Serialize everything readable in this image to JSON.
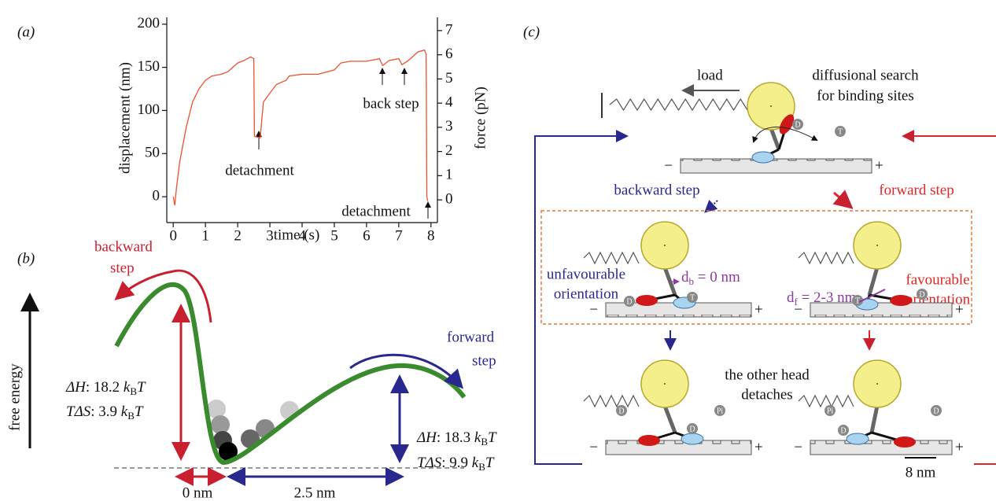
{
  "panel_labels": [
    "(a)",
    "(b)",
    "(c)"
  ],
  "chart_data": {
    "type": "line",
    "x": [
      0,
      0.05,
      0.1,
      0.2,
      0.4,
      0.6,
      0.8,
      1.0,
      1.2,
      1.5,
      1.7,
      2.0,
      2.2,
      2.4,
      2.5,
      2.52,
      2.7,
      2.75,
      2.8,
      3.0,
      3.2,
      3.5,
      3.6,
      4.0,
      4.5,
      5.0,
      5.2,
      5.5,
      6.0,
      6.4,
      6.5,
      6.7,
      7.0,
      7.1,
      7.3,
      7.6,
      7.8,
      7.85,
      7.87,
      7.9
    ],
    "values": [
      0,
      -10,
      10,
      40,
      80,
      110,
      125,
      135,
      140,
      142,
      145,
      155,
      158,
      162,
      160,
      70,
      68,
      90,
      110,
      120,
      130,
      135,
      140,
      142,
      142,
      147,
      155,
      157,
      157,
      160,
      152,
      158,
      160,
      153,
      158,
      168,
      170,
      165,
      0,
      -5
    ],
    "color": "#e8522f",
    "xlim": [
      -0.2,
      8.2
    ],
    "xticks": [
      0,
      1,
      2,
      3,
      4,
      5,
      6,
      7,
      8
    ],
    "ylim": [
      -30,
      208
    ],
    "yticks": [
      0,
      50,
      100,
      150,
      200
    ],
    "y2lim": [
      -0.94,
      7.55
    ],
    "y2ticks": [
      0,
      1,
      2,
      3,
      4,
      5,
      6,
      7
    ],
    "xlabel": "time (s)",
    "ylabel": "displacement (nm)",
    "y2label": "force (pN)",
    "annotations": [
      "detachment",
      "back step",
      "detachment"
    ]
  },
  "panel_b": {
    "backward_label": [
      "backward",
      "step"
    ],
    "forward_label": [
      "forward",
      "step"
    ],
    "axis_label": "free energy",
    "left_dh": {
      "text": "ΔH",
      "rest": ": 18.2 ",
      "k": "k",
      "sub": "B",
      "tail": "T"
    },
    "left_ts": {
      "text": "TΔS",
      "rest": ": 3.9 ",
      "k": "k",
      "sub": "B",
      "tail": "T"
    },
    "right_dh": {
      "text": "ΔH",
      "rest": ": 18.3 ",
      "k": "k",
      "sub": "B",
      "tail": "T"
    },
    "right_ts": {
      "text": "TΔS",
      "rest": ": 9.9 ",
      "k": "k",
      "sub": "B",
      "tail": "T"
    },
    "distances": [
      "0 nm",
      "2.5 nm"
    ]
  },
  "panel_c": {
    "load": "load",
    "search": [
      "diffusional search",
      "for binding sites"
    ],
    "backward_step": "backward step",
    "forward_step": "forward step",
    "unfavourable": [
      "unfavourable",
      "orientation"
    ],
    "favourable": [
      "favourable",
      "orientation"
    ],
    "db": {
      "d": "d",
      "sub": "b",
      "rest": " = 0 nm"
    },
    "df": {
      "d": "d",
      "sub": "f",
      "rest": " = 2-3 nm"
    },
    "other_head": [
      "the other head",
      "detaches"
    ],
    "scale": "8 nm",
    "minus": "−",
    "plus": "+",
    "nucleotides": [
      "D",
      "T",
      "Pi"
    ]
  }
}
